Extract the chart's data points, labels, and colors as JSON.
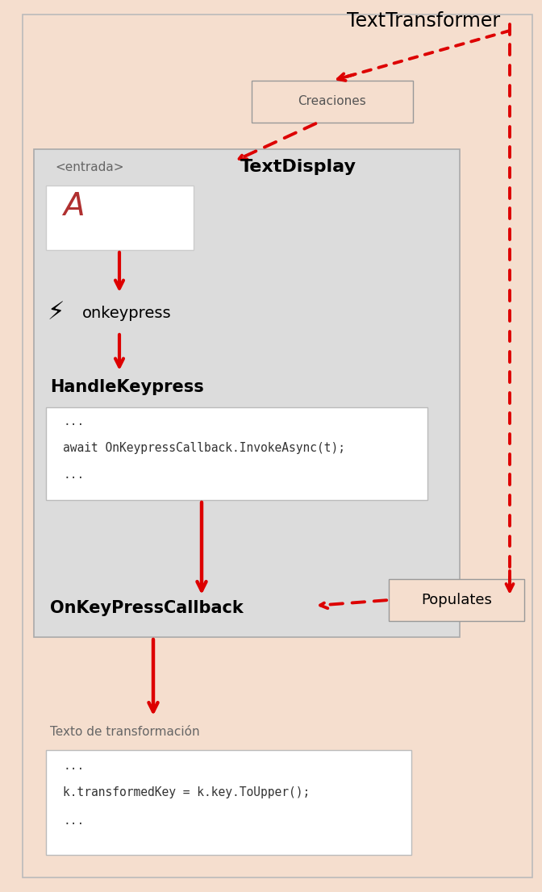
{
  "bg_color": "#f5dece",
  "inner_bg": "#dcdcdc",
  "white_box": "#ffffff",
  "red_arrow": "#dd0000",
  "title_texttransformer": "TextTransformer",
  "title_textdisplay": "TextDisplay",
  "label_entrada": "<entrada>",
  "label_A": "A",
  "label_onkeypress": "onkeypress",
  "label_handlekeypress": "HandleKeypress",
  "label_code1_line1": "...",
  "label_code1_line2": "await OnKeypressCallback.InvokeAsync(t);",
  "label_code1_line3": "...",
  "label_onkeypresscallback": "OnKeyPressCallback",
  "label_populates": "Populates",
  "label_creaciones": "Creaciones",
  "label_transformacion": "Texto de transformación",
  "label_code2_line1": "...",
  "label_code2_line2": "k.transformedKey = k.key.ToUpper();",
  "label_code2_line3": "...",
  "figw": 6.72,
  "figh": 11.06
}
